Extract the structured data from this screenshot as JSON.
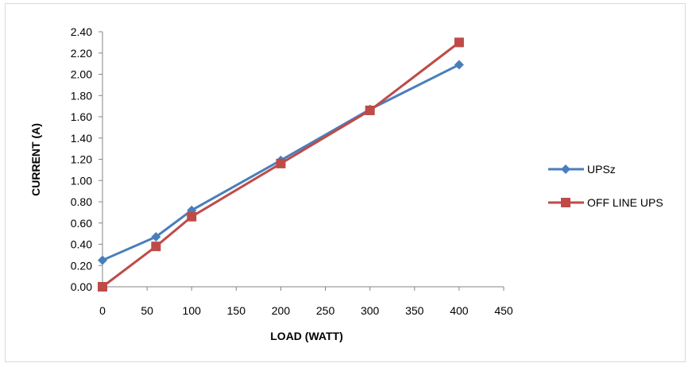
{
  "chart_data": {
    "type": "line",
    "title": "",
    "xlabel": "LOAD (WATT)",
    "ylabel": "CURRENT (A)",
    "xlim": [
      0,
      450
    ],
    "ylim": [
      0,
      2.4
    ],
    "x_ticks": [
      "0",
      "50",
      "100",
      "150",
      "200",
      "250",
      "300",
      "350",
      "400",
      "450"
    ],
    "y_ticks": [
      "0.00",
      "0.20",
      "0.40",
      "0.60",
      "0.80",
      "1.00",
      "1.20",
      "1.40",
      "1.60",
      "1.80",
      "2.00",
      "2.20",
      "2.40"
    ],
    "grid": false,
    "legend_position": "right",
    "series": [
      {
        "name": "UPSz",
        "color": "#4a7ebb",
        "marker": "diamond",
        "x": [
          0,
          60,
          100,
          200,
          300,
          400
        ],
        "y": [
          0.25,
          0.47,
          0.72,
          1.19,
          1.67,
          2.09
        ]
      },
      {
        "name": "OFF LINE UPS",
        "color": "#be4b48",
        "marker": "square",
        "x": [
          0,
          60,
          100,
          200,
          300,
          400
        ],
        "y": [
          0.0,
          0.38,
          0.66,
          1.16,
          1.66,
          2.3
        ]
      }
    ]
  }
}
